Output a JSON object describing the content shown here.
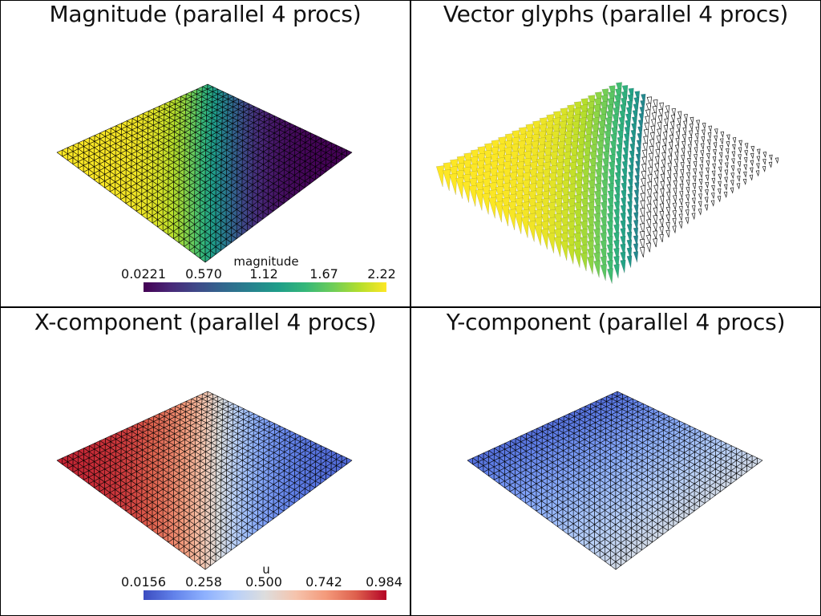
{
  "window": {
    "width": 1024,
    "height": 768
  },
  "chart_data": [
    {
      "type": "surface-mesh",
      "title": "Magnitude (parallel 4 procs)",
      "scalar": "magnitude",
      "colormap": "viridis",
      "colorbar": {
        "title": "magnitude",
        "ticks": [
          "0.0221",
          "0.570",
          "1.12",
          "1.67",
          "2.22"
        ],
        "range": [
          0.0221,
          2.22
        ]
      }
    },
    {
      "type": "vector-glyphs",
      "title": "Vector glyphs (parallel 4 procs)",
      "scalar": "magnitude",
      "colormap": "viridis"
    },
    {
      "type": "surface-mesh",
      "title": "X-component (parallel 4 procs)",
      "scalar": "u",
      "colormap": "coolwarm",
      "colorbar": {
        "title": "u",
        "ticks": [
          "0.0156",
          "0.258",
          "0.500",
          "0.742",
          "0.984"
        ],
        "range": [
          0.0156,
          0.984
        ]
      }
    },
    {
      "type": "surface-mesh",
      "title": "Y-component (parallel 4 procs)",
      "scalar": "v",
      "colormap": "coolwarm"
    }
  ],
  "colors": {
    "border": "#000000",
    "mesh_edges": "#000000",
    "background": "#ffffff"
  }
}
